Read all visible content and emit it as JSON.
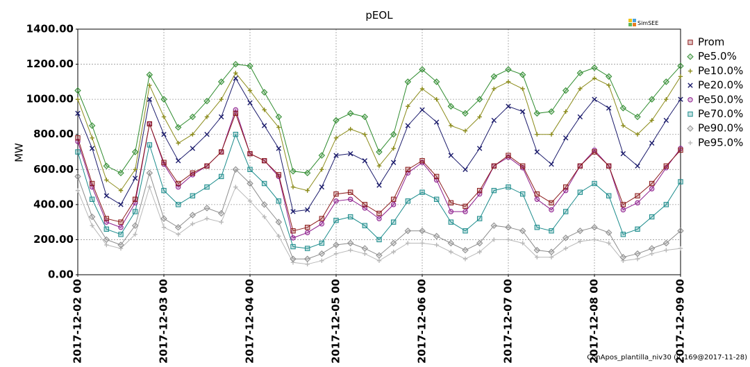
{
  "chart_data": {
    "type": "line",
    "title": "pEOL",
    "y_label": "MW",
    "footer": "ConApos_plantilla_niv30 (v_169@2017-11-28)",
    "logo": "SimSEE",
    "x": [
      "2017-12-02 00",
      "2017-12-02 04",
      "2017-12-02 08",
      "2017-12-02 12",
      "2017-12-02 16",
      "2017-12-02 20",
      "2017-12-03 00",
      "2017-12-03 04",
      "2017-12-03 08",
      "2017-12-03 12",
      "2017-12-03 16",
      "2017-12-03 20",
      "2017-12-04 00",
      "2017-12-04 04",
      "2017-12-04 08",
      "2017-12-04 12",
      "2017-12-04 16",
      "2017-12-04 20",
      "2017-12-05 00",
      "2017-12-05 04",
      "2017-12-05 08",
      "2017-12-05 12",
      "2017-12-05 16",
      "2017-12-05 20",
      "2017-12-06 00",
      "2017-12-06 04",
      "2017-12-06 08",
      "2017-12-06 12",
      "2017-12-06 16",
      "2017-12-06 20",
      "2017-12-07 00",
      "2017-12-07 04",
      "2017-12-07 08",
      "2017-12-07 12",
      "2017-12-07 16",
      "2017-12-07 20",
      "2017-12-08 00",
      "2017-12-08 04",
      "2017-12-08 08",
      "2017-12-08 12",
      "2017-12-08 16",
      "2017-12-08 20",
      "2017-12-09 00"
    ],
    "xlim": [
      "2017-12-02 00",
      "2017-12-09 00"
    ],
    "xticks": [
      "2017-12-02 00",
      "2017-12-03 00",
      "2017-12-04 00",
      "2017-12-05 00",
      "2017-12-06 00",
      "2017-12-07 00",
      "2017-12-08 00",
      "2017-12-09 00"
    ],
    "ylim": [
      0,
      1400
    ],
    "yticks": [
      {
        "value": 0,
        "label": "0.00"
      },
      {
        "value": 200,
        "label": "200.00"
      },
      {
        "value": 400,
        "label": "400.00"
      },
      {
        "value": 600,
        "label": "600.00"
      },
      {
        "value": 800,
        "label": "800.00"
      },
      {
        "value": 1000,
        "label": "1000.00"
      },
      {
        "value": 1200,
        "label": "1200.00"
      },
      {
        "value": 1400,
        "label": "1400.00"
      }
    ],
    "grid": true,
    "legend": "right",
    "series": [
      {
        "name": "Prom",
        "color": "#8b1a1a",
        "marker": "square",
        "values": [
          780,
          520,
          320,
          300,
          430,
          860,
          640,
          520,
          580,
          620,
          700,
          920,
          690,
          650,
          570,
          250,
          270,
          320,
          460,
          470,
          400,
          350,
          430,
          600,
          650,
          560,
          410,
          390,
          480,
          620,
          680,
          620,
          460,
          410,
          500,
          620,
          700,
          620,
          400,
          450,
          520,
          620,
          710
        ]
      },
      {
        "name": "Pe5.0%",
        "color": "#2e8b2e",
        "marker": "diamond",
        "values": [
          1050,
          850,
          620,
          580,
          700,
          1140,
          1000,
          840,
          900,
          990,
          1100,
          1200,
          1190,
          1040,
          900,
          590,
          580,
          680,
          880,
          920,
          900,
          700,
          800,
          1100,
          1170,
          1100,
          960,
          920,
          1000,
          1130,
          1170,
          1140,
          920,
          930,
          1050,
          1150,
          1180,
          1130,
          950,
          900,
          1000,
          1100,
          1190
        ]
      },
      {
        "name": "Pe10.0%",
        "color": "#8b8b1a",
        "marker": "plus",
        "values": [
          1000,
          780,
          540,
          480,
          600,
          1080,
          900,
          750,
          800,
          900,
          1000,
          1150,
          1050,
          940,
          840,
          500,
          480,
          600,
          780,
          830,
          800,
          620,
          720,
          960,
          1060,
          1000,
          850,
          820,
          900,
          1060,
          1100,
          1060,
          800,
          800,
          930,
          1060,
          1120,
          1080,
          850,
          800,
          880,
          1000,
          1130
        ]
      },
      {
        "name": "Pe20.0%",
        "color": "#1a1a6b",
        "marker": "x",
        "values": [
          920,
          720,
          450,
          400,
          550,
          1000,
          800,
          650,
          720,
          800,
          900,
          1120,
          980,
          850,
          720,
          360,
          370,
          500,
          680,
          690,
          650,
          510,
          640,
          850,
          940,
          870,
          680,
          600,
          720,
          880,
          960,
          930,
          700,
          630,
          780,
          900,
          1000,
          950,
          690,
          620,
          750,
          880,
          1000
        ]
      },
      {
        "name": "Pe50.0%",
        "color": "#8b1a8b",
        "marker": "circle",
        "values": [
          760,
          500,
          300,
          270,
          410,
          860,
          630,
          500,
          570,
          620,
          700,
          940,
          690,
          650,
          560,
          210,
          240,
          290,
          420,
          430,
          380,
          320,
          400,
          580,
          640,
          540,
          360,
          360,
          460,
          620,
          670,
          610,
          430,
          370,
          480,
          620,
          710,
          620,
          370,
          410,
          490,
          610,
          720
        ]
      },
      {
        "name": "Pe70.0%",
        "color": "#1a8b8b",
        "marker": "square",
        "values": [
          700,
          430,
          260,
          230,
          360,
          740,
          480,
          400,
          450,
          500,
          560,
          800,
          600,
          520,
          420,
          160,
          150,
          180,
          310,
          330,
          280,
          200,
          300,
          420,
          470,
          430,
          300,
          250,
          320,
          480,
          500,
          460,
          270,
          250,
          360,
          470,
          520,
          450,
          230,
          260,
          330,
          400,
          530
        ]
      },
      {
        "name": "Pe90.0%",
        "color": "#8c8c8c",
        "marker": "diamond",
        "values": [
          560,
          330,
          200,
          170,
          280,
          580,
          320,
          270,
          340,
          380,
          350,
          600,
          520,
          400,
          300,
          90,
          90,
          120,
          170,
          180,
          150,
          110,
          180,
          250,
          250,
          220,
          180,
          140,
          180,
          280,
          270,
          250,
          140,
          130,
          210,
          250,
          270,
          240,
          100,
          120,
          150,
          180,
          250
        ]
      },
      {
        "name": "Pe95.0%",
        "color": "#b8b8b8",
        "marker": "plus",
        "values": [
          480,
          280,
          170,
          150,
          230,
          500,
          270,
          230,
          290,
          320,
          300,
          500,
          420,
          330,
          220,
          70,
          60,
          80,
          120,
          140,
          120,
          80,
          130,
          180,
          180,
          170,
          130,
          90,
          130,
          200,
          200,
          180,
          100,
          100,
          150,
          190,
          200,
          180,
          80,
          90,
          120,
          140,
          150
        ]
      }
    ]
  }
}
